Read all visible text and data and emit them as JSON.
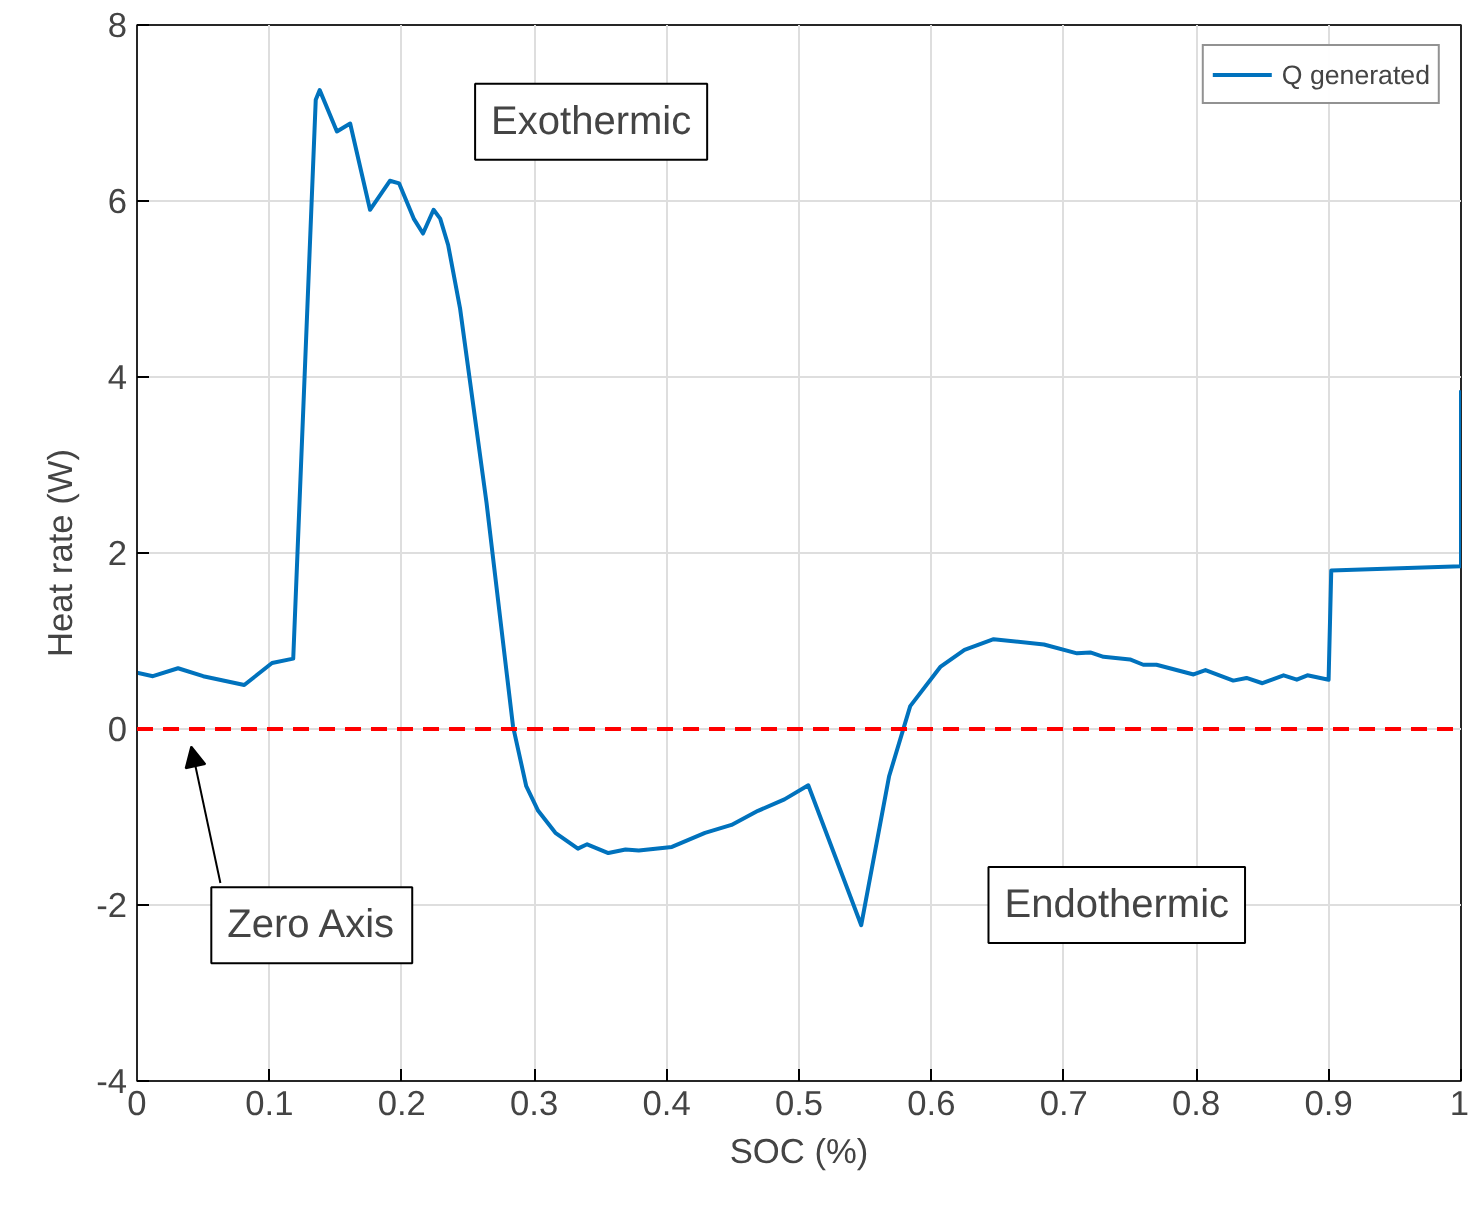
{
  "chart_data": {
    "type": "line",
    "xlabel": "SOC (%)",
    "ylabel": "Heat rate (W)",
    "xlim": [
      0,
      1
    ],
    "ylim": [
      -4,
      8
    ],
    "xticks": [
      0,
      0.1,
      0.2,
      0.3,
      0.4,
      0.5,
      0.6,
      0.7,
      0.8,
      0.9,
      1
    ],
    "yticks": [
      -4,
      -2,
      0,
      2,
      4,
      6,
      8
    ],
    "grid": true,
    "legend": "top right",
    "line_style": "solid",
    "marker": "none",
    "series": [
      {
        "name": "Q generated",
        "color": "#0072bd",
        "x": [
          0,
          0.012,
          0.031,
          0.05,
          0.081,
          0.102,
          0.118,
          0.135,
          0.138,
          0.151,
          0.161,
          0.176,
          0.191,
          0.198,
          0.209,
          0.216,
          0.224,
          0.229,
          0.235,
          0.244,
          0.264,
          0.284,
          0.294,
          0.303,
          0.316,
          0.333,
          0.34,
          0.356,
          0.369,
          0.379,
          0.404,
          0.429,
          0.449,
          0.469,
          0.489,
          0.507,
          0.547,
          0.568,
          0.584,
          0.607,
          0.625,
          0.647,
          0.685,
          0.71,
          0.72,
          0.73,
          0.75,
          0.76,
          0.77,
          0.798,
          0.807,
          0.828,
          0.838,
          0.85,
          0.866,
          0.876,
          0.884,
          0.9,
          0.902,
          1.0,
          1.0
        ],
        "values": [
          0.64,
          0.6,
          0.69,
          0.6,
          0.5,
          0.75,
          0.8,
          7.15,
          7.26,
          6.79,
          6.88,
          5.9,
          6.23,
          6.2,
          5.8,
          5.63,
          5.9,
          5.8,
          5.5,
          4.78,
          2.57,
          0.03,
          -0.65,
          -0.93,
          -1.18,
          -1.36,
          -1.31,
          -1.41,
          -1.37,
          -1.38,
          -1.34,
          -1.18,
          -1.09,
          -0.93,
          -0.8,
          -0.64,
          -2.23,
          -0.54,
          0.26,
          0.71,
          0.9,
          1.02,
          0.96,
          0.86,
          0.87,
          0.82,
          0.79,
          0.73,
          0.73,
          0.62,
          0.67,
          0.55,
          0.58,
          0.52,
          0.61,
          0.56,
          0.61,
          0.56,
          1.8,
          1.85,
          3.85
        ]
      }
    ],
    "ref_lines": [
      {
        "axis": "y",
        "value": 0,
        "color": "#ff0000",
        "line_style": "dashed"
      }
    ],
    "annotations": [
      "Exothermic",
      "Endothermic",
      "Zero Axis"
    ]
  }
}
